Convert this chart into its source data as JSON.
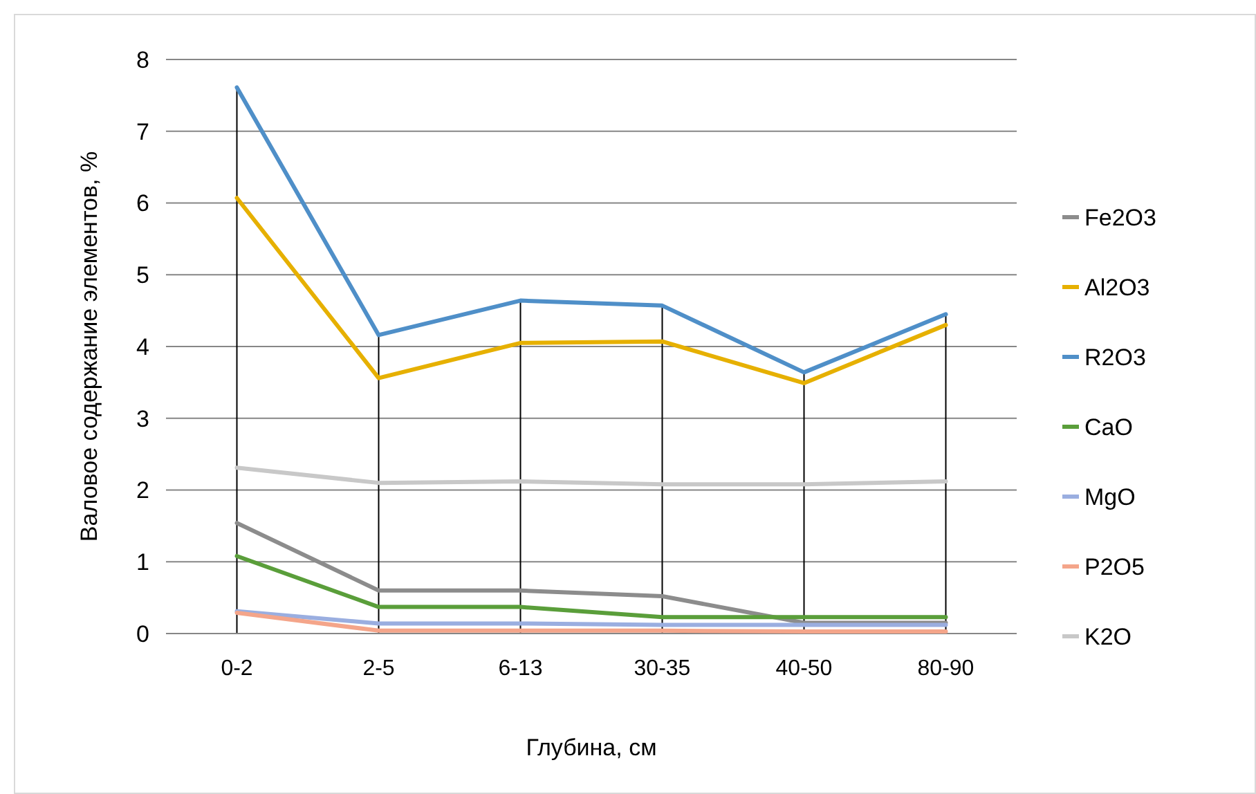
{
  "chart_data": {
    "type": "line",
    "xlabel": "Глубина, см",
    "ylabel": "Валовое содержание элементов, %",
    "categories": [
      "0-2",
      "2-5",
      "6-13",
      "30-35",
      "40-50",
      "80-90"
    ],
    "ylim": [
      0,
      8
    ],
    "yticks": [
      0,
      1,
      2,
      3,
      4,
      5,
      6,
      7,
      8
    ],
    "grid": "y",
    "legend": "right",
    "marker": "none",
    "line_style": "solid",
    "ref_lines": [
      {
        "axis": "x",
        "value": "0-2",
        "color": "#000000"
      },
      {
        "axis": "x",
        "value": "2-5",
        "color": "#000000"
      },
      {
        "axis": "x",
        "value": "6-13",
        "color": "#000000"
      },
      {
        "axis": "x",
        "value": "30-35",
        "color": "#000000"
      },
      {
        "axis": "x",
        "value": "40-50",
        "color": "#000000"
      },
      {
        "axis": "x",
        "value": "80-90",
        "color": "#000000"
      }
    ],
    "series": [
      {
        "name": "Fe2O3",
        "color": "#8c8c8c",
        "values": [
          1.54,
          0.6,
          0.6,
          0.52,
          0.15,
          0.15
        ]
      },
      {
        "name": "Al2O3",
        "color": "#e6b000",
        "values": [
          6.07,
          3.56,
          4.05,
          4.07,
          3.49,
          4.3
        ]
      },
      {
        "name": "R2O3",
        "color": "#4f8fc8",
        "values": [
          7.61,
          4.16,
          4.64,
          4.57,
          3.64,
          4.45
        ]
      },
      {
        "name": "CaO",
        "color": "#5a9e3a",
        "values": [
          1.08,
          0.37,
          0.37,
          0.23,
          0.23,
          0.23
        ]
      },
      {
        "name": "MgO",
        "color": "#9aaee0",
        "values": [
          0.31,
          0.14,
          0.14,
          0.12,
          0.12,
          0.12
        ]
      },
      {
        "name": "P2O5",
        "color": "#f4a58a",
        "values": [
          0.29,
          0.04,
          0.04,
          0.04,
          0.03,
          0.03
        ]
      },
      {
        "name": "K2O",
        "color": "#c8c8c8",
        "values": [
          2.31,
          2.1,
          2.12,
          2.08,
          2.08,
          2.12
        ]
      }
    ]
  }
}
